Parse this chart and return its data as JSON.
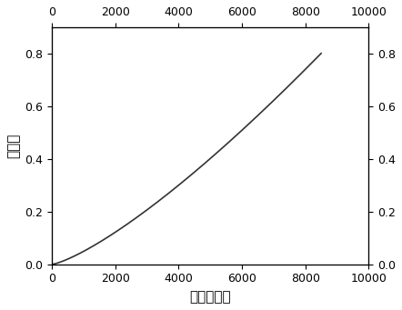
{
  "xlabel_bottom": "时间（秒）",
  "ylabel_left": "转化率",
  "xlim": [
    0,
    10000
  ],
  "ylim": [
    0.0,
    0.9
  ],
  "xticks": [
    0,
    2000,
    4000,
    6000,
    8000,
    10000
  ],
  "yticks_left": [
    0.0,
    0.2,
    0.4,
    0.6,
    0.8
  ],
  "yticks_right": [
    0.0,
    0.2,
    0.4,
    0.6,
    0.8
  ],
  "line_color": "#333333",
  "line_width": 1.2,
  "background_color": "#ffffff",
  "font_size_label": 11,
  "font_size_tick": 9,
  "curve_power": 1.3,
  "curve_xmax": 8500,
  "curve_ymax": 0.8
}
